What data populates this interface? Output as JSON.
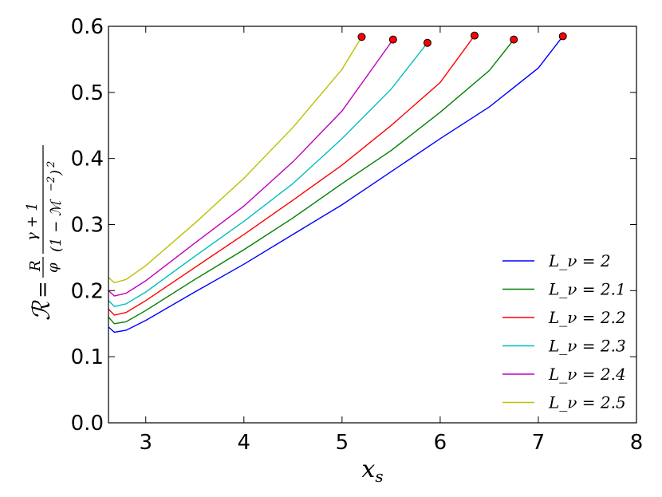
{
  "chart_data": {
    "type": "line",
    "xlabel": "x_s",
    "ylabel": "ℛ = (R/φ) · (γ+1)/(1−ℳ⁻²)²",
    "xlim": [
      2.62,
      8.0
    ],
    "ylim": [
      0.0,
      0.6
    ],
    "x_ticks": [
      3,
      4,
      5,
      6,
      7,
      8
    ],
    "y_ticks": [
      0.0,
      0.1,
      0.2,
      0.3,
      0.4,
      0.5,
      0.6
    ],
    "x_tick_labels": [
      "3",
      "4",
      "5",
      "6",
      "7",
      "8"
    ],
    "y_tick_labels": [
      "0.0",
      "0.1",
      "0.2",
      "0.3",
      "0.4",
      "0.5",
      "0.6"
    ],
    "grid": false,
    "legend_position": "lower-right",
    "series": [
      {
        "name": "L_ν = 2",
        "color": "#0000ff",
        "x": [
          2.62,
          2.68,
          2.8,
          3.0,
          3.5,
          4.0,
          4.5,
          5.0,
          5.5,
          6.0,
          6.5,
          7.0,
          7.25
        ],
        "y": [
          0.145,
          0.137,
          0.14,
          0.155,
          0.198,
          0.24,
          0.285,
          0.33,
          0.38,
          0.43,
          0.478,
          0.537,
          0.585
        ],
        "end_marker": [
          7.25,
          0.585
        ]
      },
      {
        "name": "L_ν = 2.1",
        "color": "#008000",
        "x": [
          2.62,
          2.68,
          2.8,
          3.0,
          3.5,
          4.0,
          4.5,
          5.0,
          5.5,
          6.0,
          6.5,
          6.75
        ],
        "y": [
          0.16,
          0.15,
          0.153,
          0.17,
          0.217,
          0.262,
          0.31,
          0.362,
          0.412,
          0.47,
          0.533,
          0.58
        ],
        "end_marker": [
          6.75,
          0.58
        ]
      },
      {
        "name": "L_ν = 2.2",
        "color": "#ff0000",
        "x": [
          2.62,
          2.68,
          2.8,
          3.0,
          3.5,
          4.0,
          4.5,
          5.0,
          5.5,
          6.0,
          6.35
        ],
        "y": [
          0.172,
          0.163,
          0.167,
          0.185,
          0.235,
          0.285,
          0.337,
          0.39,
          0.45,
          0.515,
          0.586
        ],
        "end_marker": [
          6.35,
          0.586
        ]
      },
      {
        "name": "L_ν = 2.3",
        "color": "#00bfbf",
        "x": [
          2.62,
          2.68,
          2.8,
          3.0,
          3.5,
          4.0,
          4.5,
          5.0,
          5.5,
          5.87
        ],
        "y": [
          0.185,
          0.176,
          0.18,
          0.198,
          0.252,
          0.305,
          0.362,
          0.43,
          0.505,
          0.575
        ],
        "end_marker": [
          5.87,
          0.575
        ]
      },
      {
        "name": "L_ν = 2.4",
        "color": "#bf00bf",
        "x": [
          2.62,
          2.68,
          2.8,
          3.0,
          3.5,
          4.0,
          4.5,
          5.0,
          5.52
        ],
        "y": [
          0.2,
          0.192,
          0.196,
          0.215,
          0.272,
          0.328,
          0.395,
          0.472,
          0.58
        ],
        "end_marker": [
          5.52,
          0.58
        ]
      },
      {
        "name": "L_ν = 2.5",
        "color": "#bfbf00",
        "x": [
          2.62,
          2.68,
          2.8,
          3.0,
          3.5,
          4.0,
          4.5,
          5.0,
          5.2
        ],
        "y": [
          0.22,
          0.212,
          0.217,
          0.238,
          0.302,
          0.37,
          0.447,
          0.535,
          0.584
        ],
        "end_marker": [
          5.2,
          0.584
        ]
      }
    ],
    "marker_color": "#ff0000"
  }
}
